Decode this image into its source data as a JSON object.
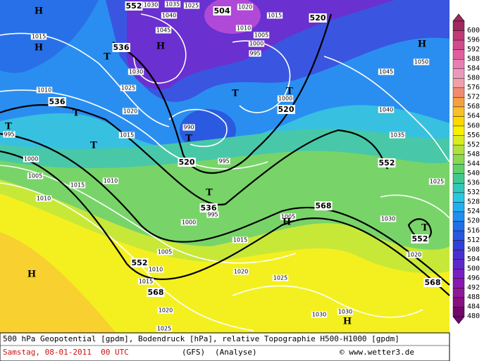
{
  "map_labels": [
    "H",
    "1015",
    "H",
    "1010",
    "536",
    "T",
    "T",
    "995",
    "T",
    "1000",
    "1005",
    "1010",
    "1015",
    "1010",
    "552",
    "1030",
    "1040",
    "1035",
    "1025",
    "1045",
    "H",
    "536",
    "T",
    "1030",
    "1025",
    "1020",
    "1015",
    "504",
    "1020",
    "1015",
    "1010",
    "1005",
    "1000",
    "995",
    "520",
    "H",
    "1050",
    "1045",
    "T",
    "T",
    "1000",
    "520",
    "990",
    "T",
    "1040",
    "1035",
    "520",
    "995",
    "552",
    "1025",
    "T",
    "536",
    "995",
    "568",
    "1005",
    "H",
    "1000",
    "1030",
    "T",
    "552",
    "1015",
    "1005",
    "552",
    "1010",
    "1020",
    "1025",
    "1015",
    "1020",
    "568",
    "568",
    "H",
    "1020",
    "1025",
    "1030",
    "1030",
    "H"
  ],
  "colorbar": {
    "values": [
      600,
      596,
      592,
      588,
      584,
      580,
      576,
      572,
      568,
      564,
      560,
      556,
      552,
      548,
      544,
      540,
      536,
      532,
      528,
      524,
      520,
      516,
      512,
      508,
      504,
      500,
      496,
      492,
      488,
      484,
      480
    ],
    "colors": [
      "#a0295e",
      "#c03a78",
      "#d24a8c",
      "#e05ea0",
      "#e87fb0",
      "#ec98bc",
      "#f0a0a8",
      "#f08a70",
      "#f4a040",
      "#f8c028",
      "#fcd800",
      "#f8f000",
      "#d8ec20",
      "#b0e040",
      "#88d850",
      "#60d068",
      "#40c890",
      "#30c8b8",
      "#28c8e0",
      "#20b0f0",
      "#2090f0",
      "#2070e8",
      "#2858e0",
      "#3040d8",
      "#4830d0",
      "#6028c8",
      "#7820c0",
      "#8818b0",
      "#901898",
      "#881080",
      "#700868"
    ]
  },
  "footer": {
    "description": "500 hPa Geopotential [gpdm], Bodendruck [hPa], relative Topographie H500-H1000 [gpdm]",
    "date": "Samstag, 08-01-2011  00 UTC",
    "model": "(GFS)",
    "run": "(Analyse)",
    "copyright": "© www.wetter3.de"
  }
}
